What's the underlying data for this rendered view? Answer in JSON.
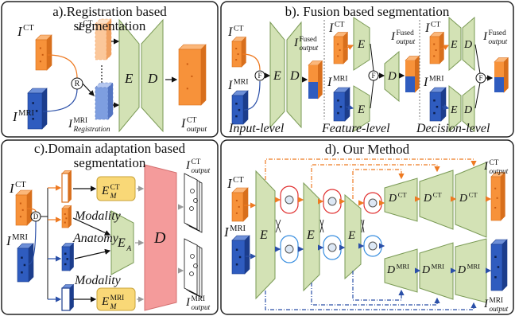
{
  "panels": [
    {
      "title": [
        "a).Registration based",
        "segmentation"
      ],
      "labels": [
        {
          "base": "I",
          "sup": "CT"
        },
        {
          "base": "I",
          "sup": "MRI"
        },
        {
          "base": "R"
        },
        {
          "base": "I",
          "sup": "CT"
        },
        {
          "base": "I",
          "sup": "MRI",
          "sub": "Registration"
        },
        {
          "base": "E"
        },
        {
          "base": "D"
        },
        {
          "base": "I",
          "sup": "CT",
          "sub": "output"
        }
      ]
    },
    {
      "title": [
        "b). Fusion based segmentation"
      ],
      "labels": [
        {
          "base": "I",
          "sup": "CT"
        },
        {
          "base": "I",
          "sup": "MRI"
        },
        {
          "base": "F"
        },
        {
          "base": "E"
        },
        {
          "base": "D"
        },
        {
          "base": "I",
          "sup": "Fused",
          "sub": "output"
        },
        {
          "base": "Input-level"
        },
        {
          "base": "I",
          "sup": "CT"
        },
        {
          "base": "I",
          "sup": "MRI"
        },
        {
          "base": "E"
        },
        {
          "base": "E"
        },
        {
          "base": "F"
        },
        {
          "base": "D"
        },
        {
          "base": "I",
          "sup": "Fused",
          "sub": "output"
        },
        {
          "base": "Feature-level"
        },
        {
          "base": "I",
          "sup": "CT"
        },
        {
          "base": "I",
          "sup": "MRI"
        },
        {
          "base": "E"
        },
        {
          "base": "D"
        },
        {
          "base": "E"
        },
        {
          "base": "D"
        },
        {
          "base": "F"
        },
        {
          "base": "I",
          "sup": "Fused",
          "sub": "output"
        },
        {
          "base": "Decision-level"
        }
      ]
    },
    {
      "title": [
        "c).Domain adaptation based",
        "segmentation"
      ],
      "labels": [
        {
          "base": "I",
          "sup": "CT"
        },
        {
          "base": "D"
        },
        {
          "base": "I",
          "sup": "MRI"
        },
        {
          "base": "E",
          "sup": "CT",
          "sub": "M"
        },
        {
          "base": "Modality"
        },
        {
          "base": "Anatomy"
        },
        {
          "base": "E",
          "sub": "A"
        },
        {
          "base": "Modality"
        },
        {
          "base": "E",
          "sup": "MRI",
          "sub": "M"
        },
        {
          "base": "D"
        },
        {
          "base": "I",
          "sup": "CT",
          "sub": "output"
        },
        {
          "base": "I",
          "sup": "MRI",
          "sub": "output"
        }
      ]
    },
    {
      "title": [
        "d). Our Method"
      ],
      "labels": [
        {
          "base": "I",
          "sup": "CT"
        },
        {
          "base": "I",
          "sup": "MRI"
        },
        {
          "base": "E"
        },
        {
          "base": "E"
        },
        {
          "base": "E"
        },
        {
          "base": "D",
          "sup": "CT"
        },
        {
          "base": "D",
          "sup": "CT"
        },
        {
          "base": "D",
          "sup": "CT"
        },
        {
          "base": "I",
          "sup": "CT",
          "sub": "output"
        },
        {
          "base": "D",
          "sup": "MRI"
        },
        {
          "base": "D",
          "sup": "MRI"
        },
        {
          "base": "D",
          "sup": "MRI"
        },
        {
          "base": "I",
          "sup": "MRI",
          "sub": "output"
        }
      ]
    }
  ]
}
